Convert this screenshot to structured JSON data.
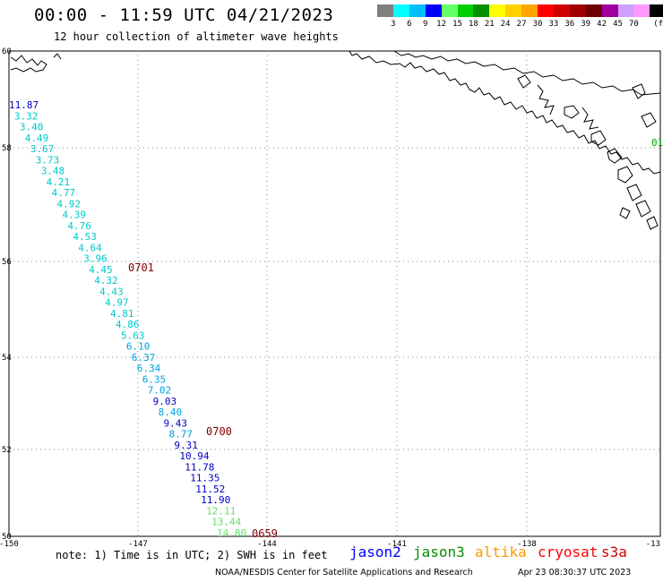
{
  "header": {
    "title": "00:00 - 11:59 UTC 04/21/2023",
    "subtitle": "12 hour collection of altimeter wave heights"
  },
  "legend": {
    "unit": "(ft)",
    "bins": [
      {
        "label": "",
        "color": "#7f7f7f"
      },
      {
        "label": "3",
        "color": "#00ffff"
      },
      {
        "label": "6",
        "color": "#00bfff"
      },
      {
        "label": "9",
        "color": "#0000ff"
      },
      {
        "label": "12",
        "color": "#66ff66"
      },
      {
        "label": "15",
        "color": "#00d000"
      },
      {
        "label": "18",
        "color": "#009000"
      },
      {
        "label": "21",
        "color": "#ffff00"
      },
      {
        "label": "24",
        "color": "#ffd000"
      },
      {
        "label": "27",
        "color": "#ffa500"
      },
      {
        "label": "30",
        "color": "#ff0000"
      },
      {
        "label": "33",
        "color": "#d00000"
      },
      {
        "label": "36",
        "color": "#a00000"
      },
      {
        "label": "39",
        "color": "#700000"
      },
      {
        "label": "42",
        "color": "#a000a0"
      },
      {
        "label": "45",
        "color": "#d0a0ff"
      },
      {
        "label": "70",
        "color": "#ff99ff"
      },
      {
        "label": "",
        "color": "#000000"
      }
    ]
  },
  "axes": {
    "lat_labels": [
      "60",
      "58",
      "56",
      "54",
      "52",
      "50"
    ],
    "lon_labels": [
      "-150",
      "-147",
      "-144",
      "-141",
      "-138",
      "-13"
    ]
  },
  "track": {
    "points": [
      {
        "text": "11.87",
        "color": "#0000c0"
      },
      {
        "text": "3.32",
        "color": "#00c8c8"
      },
      {
        "text": "3.40",
        "color": "#00c8c8"
      },
      {
        "text": "4.49",
        "color": "#00c8c8"
      },
      {
        "text": "3.67",
        "color": "#00c8c8"
      },
      {
        "text": "3.73",
        "color": "#00c8c8"
      },
      {
        "text": "3.48",
        "color": "#00c8c8"
      },
      {
        "text": "4.21",
        "color": "#00c8c8"
      },
      {
        "text": "4.77",
        "color": "#00c8c8"
      },
      {
        "text": "4.92",
        "color": "#00c8c8"
      },
      {
        "text": "4.39",
        "color": "#00c8c8"
      },
      {
        "text": "4.76",
        "color": "#00c8c8"
      },
      {
        "text": "4.53",
        "color": "#00c8c8"
      },
      {
        "text": "4.64",
        "color": "#00c8c8"
      },
      {
        "text": "3.96",
        "color": "#00c8c8"
      },
      {
        "text": "4.45",
        "color": "#00c8c8"
      },
      {
        "text": "4.32",
        "color": "#00c8c8"
      },
      {
        "text": "4.43",
        "color": "#00c8c8"
      },
      {
        "text": "4.97",
        "color": "#00c8c8"
      },
      {
        "text": "4.81",
        "color": "#00c8c8"
      },
      {
        "text": "4.86",
        "color": "#00c8c8"
      },
      {
        "text": "5.63",
        "color": "#00c8c8"
      },
      {
        "text": "6.10",
        "color": "#00a0e0"
      },
      {
        "text": "6.37",
        "color": "#00a0e0"
      },
      {
        "text": "6.34",
        "color": "#00a0e0"
      },
      {
        "text": "6.35",
        "color": "#00a0e0"
      },
      {
        "text": "7.02",
        "color": "#00a0e0"
      },
      {
        "text": "9.03",
        "color": "#0000c0"
      },
      {
        "text": "8.40",
        "color": "#00a0e0"
      },
      {
        "text": "9.43",
        "color": "#0000c0"
      },
      {
        "text": "8.77",
        "color": "#00a0e0"
      },
      {
        "text": "9.31",
        "color": "#0000c0"
      },
      {
        "text": "10.94",
        "color": "#0000c0"
      },
      {
        "text": "11.78",
        "color": "#0000c0"
      },
      {
        "text": "11.35",
        "color": "#0000c0"
      },
      {
        "text": "11.52",
        "color": "#0000c0"
      },
      {
        "text": "11.90",
        "color": "#0000c0"
      },
      {
        "text": "12.11",
        "color": "#66e066"
      },
      {
        "text": "13.44",
        "color": "#66e066"
      },
      {
        "text": "14.80",
        "color": "#66e066"
      }
    ],
    "times": [
      {
        "text": "0701",
        "color": "#800000"
      },
      {
        "text": "0700",
        "color": "#800000"
      },
      {
        "text": "0659",
        "color": "#800000"
      }
    ]
  },
  "footer": {
    "note": "note: 1) Time is in UTC; 2) SWH is in feet",
    "satellites": [
      {
        "name": "jason2",
        "color": "#0000ff"
      },
      {
        "name": "jason3",
        "color": "#009000"
      },
      {
        "name": "altika",
        "color": "#ff9900"
      },
      {
        "name": "cryosat",
        "color": "#ff0000"
      },
      {
        "name": "s3a",
        "color": "#cc0000"
      }
    ],
    "credit": "NOAA/NESDIS Center for Satellite Applications and Research",
    "timestamp": "Apr 23 08:30:37 UTC 2023"
  }
}
